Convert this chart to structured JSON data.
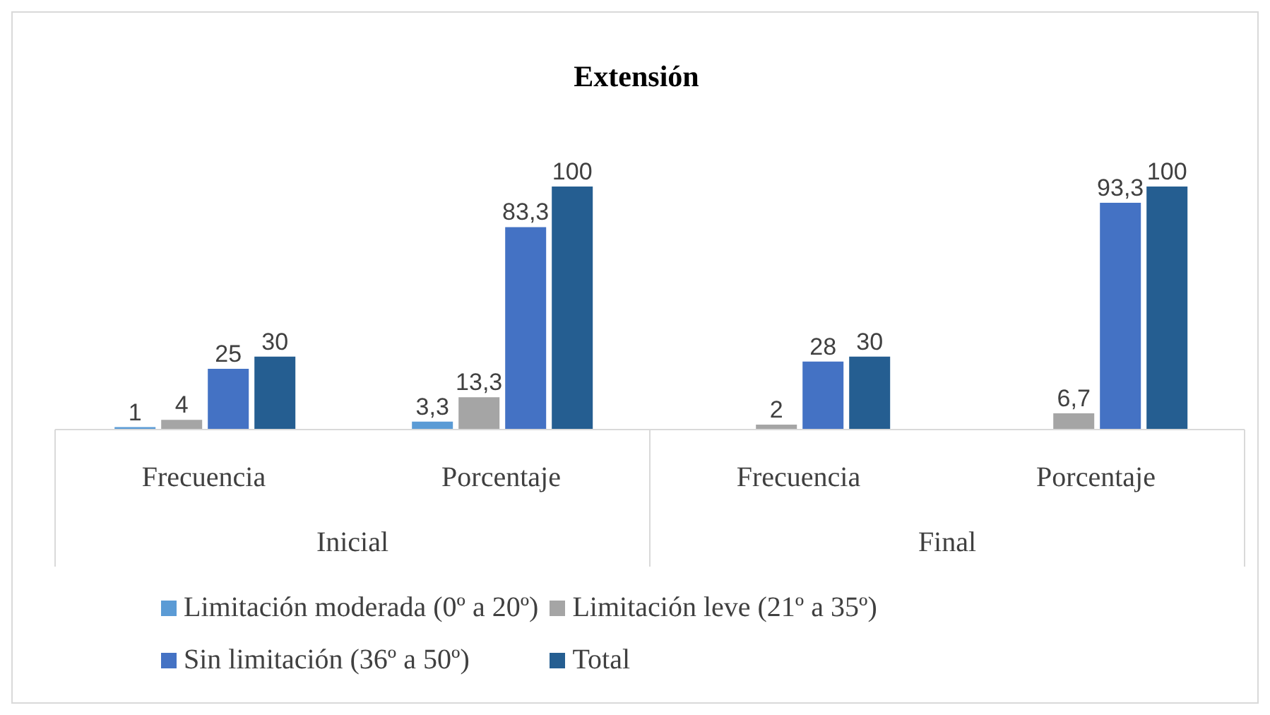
{
  "chart_data": {
    "type": "bar",
    "title": "Extensión",
    "categories": [
      "Frecuencia",
      "Porcentaje",
      "Frecuencia",
      "Porcentaje"
    ],
    "annotations": [
      "Inicial",
      "Final"
    ],
    "series": [
      {
        "name": "Limitación moderada (0º a 20º)",
        "color": "#5b9bd5",
        "values": [
          1,
          3.3,
          null,
          null
        ],
        "value_labels": [
          "1",
          "3,3",
          null,
          null
        ]
      },
      {
        "name": "Limitación leve (21º a 35º)",
        "color": "#a5a5a5",
        "values": [
          4,
          13.3,
          2,
          6.7
        ],
        "value_labels": [
          "4",
          "13,3",
          "2",
          "6,7"
        ]
      },
      {
        "name": "Sin limitación (36º a 50º)",
        "color": "#4472c4",
        "values": [
          25,
          83.3,
          28,
          93.3
        ],
        "value_labels": [
          "25",
          "83,3",
          "28",
          "93,3"
        ]
      },
      {
        "name": "Total",
        "color": "#255e91",
        "values": [
          30,
          100,
          30,
          100
        ],
        "value_labels": [
          "30",
          "100",
          "30",
          "100"
        ]
      }
    ],
    "grid": false,
    "legend": "bottom"
  }
}
